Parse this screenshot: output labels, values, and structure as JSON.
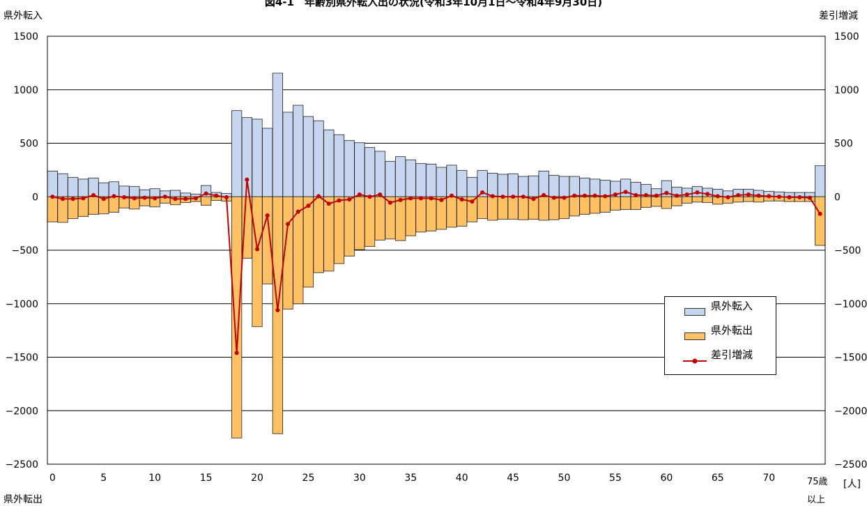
{
  "chart_data": {
    "type": "bar",
    "title": "図4-1　年齢別県外転入出の状況(令和3年10月1日～令和4年9月30日)",
    "left_axis_label_top": "県外転入",
    "left_axis_label_bottom": "県外転出",
    "right_axis_label": "差引増減",
    "unit_label": "[人]",
    "last_category_label_line1": "75歳",
    "last_category_label_line2": "以上",
    "ylim": [
      -2500,
      1500
    ],
    "y_ticks": [
      "1500",
      "1000",
      "500",
      "0",
      "−500",
      "−1000",
      "−1500",
      "−2000",
      "−2500"
    ],
    "x_tick_labels": [
      "0",
      "5",
      "10",
      "15",
      "20",
      "25",
      "30",
      "35",
      "40",
      "45",
      "50",
      "55",
      "60",
      "65",
      "70"
    ],
    "x_tick_positions": [
      0,
      5,
      10,
      15,
      20,
      25,
      30,
      35,
      40,
      45,
      50,
      55,
      60,
      65,
      70
    ],
    "grid": true,
    "legend_position": "bottom-right",
    "colors": {
      "inflow": "#c5d6ee",
      "outflow": "#ffc164",
      "net": "#c00000"
    },
    "series": [
      {
        "name": "県外転入",
        "values": [
          240,
          215,
          180,
          165,
          175,
          130,
          140,
          100,
          95,
          65,
          75,
          55,
          60,
          35,
          25,
          105,
          40,
          30,
          805,
          740,
          725,
          640,
          1155,
          790,
          855,
          750,
          710,
          625,
          580,
          525,
          505,
          460,
          425,
          330,
          375,
          345,
          310,
          305,
          275,
          295,
          245,
          180,
          245,
          220,
          210,
          215,
          190,
          195,
          240,
          200,
          190,
          190,
          175,
          165,
          155,
          145,
          165,
          135,
          115,
          75,
          150,
          90,
          80,
          95,
          80,
          70,
          55,
          70,
          70,
          60,
          50,
          45,
          40,
          40,
          40,
          290
        ]
      },
      {
        "name": "県外転出",
        "values": [
          -235,
          -240,
          -205,
          -185,
          -165,
          -160,
          -145,
          -105,
          -115,
          -85,
          -95,
          -60,
          -75,
          -55,
          -45,
          -80,
          -35,
          -40,
          -2255,
          -575,
          -1215,
          -815,
          -2215,
          -1050,
          -1000,
          -845,
          -710,
          -695,
          -625,
          -555,
          -495,
          -465,
          -405,
          -395,
          -410,
          -365,
          -330,
          -320,
          -305,
          -285,
          -275,
          -235,
          -205,
          -220,
          -210,
          -210,
          -215,
          -210,
          -220,
          -215,
          -205,
          -180,
          -165,
          -155,
          -145,
          -125,
          -120,
          -120,
          -100,
          -90,
          -110,
          -85,
          -60,
          -50,
          -55,
          -70,
          -60,
          -50,
          -45,
          -50,
          -40,
          -40,
          -45,
          -45,
          -45,
          -455
        ]
      },
      {
        "name": "差引増減",
        "values": [
          0,
          -20,
          -20,
          -15,
          15,
          -20,
          5,
          -5,
          -15,
          -10,
          -15,
          0,
          -20,
          -20,
          -15,
          30,
          10,
          -5,
          -1460,
          160,
          -490,
          -175,
          -1060,
          -255,
          -140,
          -85,
          5,
          -65,
          -35,
          -25,
          20,
          0,
          20,
          -55,
          -30,
          -15,
          -15,
          -15,
          -30,
          10,
          -25,
          -45,
          40,
          5,
          0,
          0,
          0,
          -20,
          15,
          -10,
          -10,
          10,
          10,
          10,
          5,
          20,
          45,
          15,
          15,
          10,
          35,
          10,
          20,
          40,
          25,
          5,
          -5,
          15,
          20,
          10,
          5,
          0,
          -5,
          -5,
          -10,
          -160
        ]
      }
    ]
  }
}
